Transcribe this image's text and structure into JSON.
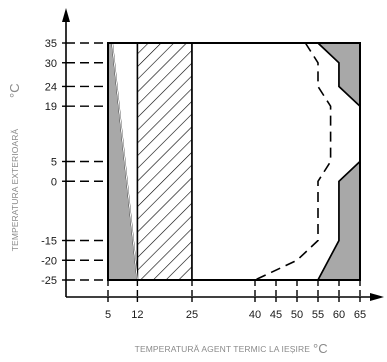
{
  "chart_data": {
    "type": "area",
    "xlabel": "TEMPERATURĂ AGENT TERMIC LA IEȘIRE",
    "xunit": "°C",
    "ylabel": "TEMPERATURA EXTERIOARĂ",
    "yunit": "°C",
    "x_ticks": [
      5,
      12,
      25,
      40,
      45,
      50,
      55,
      60,
      65
    ],
    "y_ticks": [
      35,
      30,
      24,
      19,
      5,
      0,
      -15,
      -20,
      -25
    ],
    "xlim": [
      5,
      65
    ],
    "ylim": [
      -25,
      35
    ],
    "regions": [
      {
        "fill": "grey",
        "points": [
          [
            5,
            35
          ],
          [
            6,
            35
          ],
          [
            12,
            -25
          ],
          [
            5,
            -25
          ]
        ]
      },
      {
        "fill": "hatched",
        "points": [
          [
            12,
            35
          ],
          [
            25,
            35
          ],
          [
            25,
            -25
          ],
          [
            12,
            -25
          ]
        ]
      },
      {
        "fill": "white",
        "points": [
          [
            25,
            35
          ],
          [
            55,
            35
          ],
          [
            60,
            30
          ],
          [
            60,
            24
          ],
          [
            65,
            19
          ],
          [
            65,
            5
          ],
          [
            60,
            0
          ],
          [
            60,
            -15
          ],
          [
            55,
            -25
          ],
          [
            25,
            -25
          ]
        ]
      },
      {
        "fill": "grey",
        "points": [
          [
            55,
            35
          ],
          [
            65,
            35
          ],
          [
            65,
            19
          ],
          [
            60,
            24
          ],
          [
            60,
            30
          ]
        ]
      },
      {
        "fill": "grey",
        "points": [
          [
            65,
            5
          ],
          [
            65,
            -25
          ],
          [
            55,
            -25
          ],
          [
            60,
            -15
          ],
          [
            60,
            0
          ]
        ]
      }
    ],
    "dashed_limit": [
      [
        52,
        35
      ],
      [
        55,
        30
      ],
      [
        55,
        24
      ],
      [
        58,
        19
      ],
      [
        58,
        5
      ],
      [
        55,
        0
      ],
      [
        55,
        -15
      ],
      [
        50,
        -20
      ],
      [
        40,
        -25
      ]
    ],
    "colors": {
      "grey": "#a8a8a8",
      "line": "#000000",
      "hatch": "#000000"
    }
  }
}
